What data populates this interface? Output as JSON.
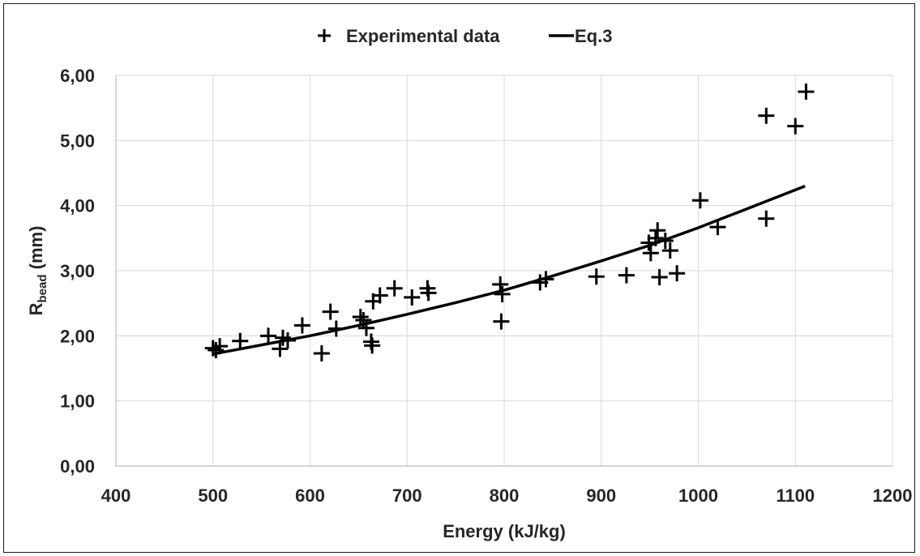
{
  "chart_data": {
    "type": "scatter",
    "title": "",
    "xlabel": "Energy (kJ/kg)",
    "ylabel_main": "R",
    "ylabel_sub": "bead",
    "ylabel_unit": " (mm)",
    "xlim": [
      400,
      1200
    ],
    "ylim": [
      0,
      6
    ],
    "x_ticks": [
      400,
      500,
      600,
      700,
      800,
      900,
      1000,
      1100,
      1200
    ],
    "y_ticks": [
      0,
      1,
      2,
      3,
      4,
      5,
      6
    ],
    "x_tick_labels": [
      "400",
      "500",
      "600",
      "700",
      "800",
      "900",
      "1000",
      "1100",
      "1200"
    ],
    "y_tick_labels": [
      "0,00",
      "1,00",
      "2,00",
      "3,00",
      "4,00",
      "5,00",
      "6,00"
    ],
    "grid": "vertical and horizontal",
    "legend_placement": "top-center",
    "series": [
      {
        "name": "Experimental data",
        "marker": "plus",
        "color": "#000000",
        "points": [
          [
            500,
            1.81
          ],
          [
            503,
            1.78
          ],
          [
            507,
            1.84
          ],
          [
            528,
            1.92
          ],
          [
            557,
            2.0
          ],
          [
            569,
            1.8
          ],
          [
            572,
            1.97
          ],
          [
            577,
            1.93
          ],
          [
            592,
            2.16
          ],
          [
            612,
            1.73
          ],
          [
            621,
            2.37
          ],
          [
            627,
            2.11
          ],
          [
            652,
            2.29
          ],
          [
            655,
            2.24
          ],
          [
            658,
            2.12
          ],
          [
            663,
            1.91
          ],
          [
            664,
            1.85
          ],
          [
            665,
            2.53
          ],
          [
            672,
            2.62
          ],
          [
            687,
            2.73
          ],
          [
            705,
            2.59
          ],
          [
            721,
            2.73
          ],
          [
            722,
            2.66
          ],
          [
            796,
            2.79
          ],
          [
            797,
            2.22
          ],
          [
            798,
            2.64
          ],
          [
            837,
            2.82
          ],
          [
            843,
            2.87
          ],
          [
            895,
            2.91
          ],
          [
            926,
            2.93
          ],
          [
            949,
            3.43
          ],
          [
            951,
            3.27
          ],
          [
            956,
            3.5
          ],
          [
            958,
            3.62
          ],
          [
            960,
            2.9
          ],
          [
            966,
            3.46
          ],
          [
            971,
            3.31
          ],
          [
            978,
            2.96
          ],
          [
            1002,
            4.08
          ],
          [
            1020,
            3.67
          ],
          [
            1070,
            3.8
          ],
          [
            1070,
            5.38
          ],
          [
            1100,
            5.22
          ],
          [
            1111,
            5.75
          ]
        ]
      },
      {
        "name": "Eq.3",
        "type": "line",
        "color": "#000000",
        "x": [
          500,
          550,
          600,
          650,
          700,
          750,
          800,
          850,
          900,
          950,
          1000,
          1050,
          1110
        ],
        "y": [
          1.72,
          1.86,
          2.0,
          2.16,
          2.33,
          2.51,
          2.7,
          2.92,
          3.15,
          3.39,
          3.66,
          3.95,
          4.3
        ]
      }
    ]
  }
}
